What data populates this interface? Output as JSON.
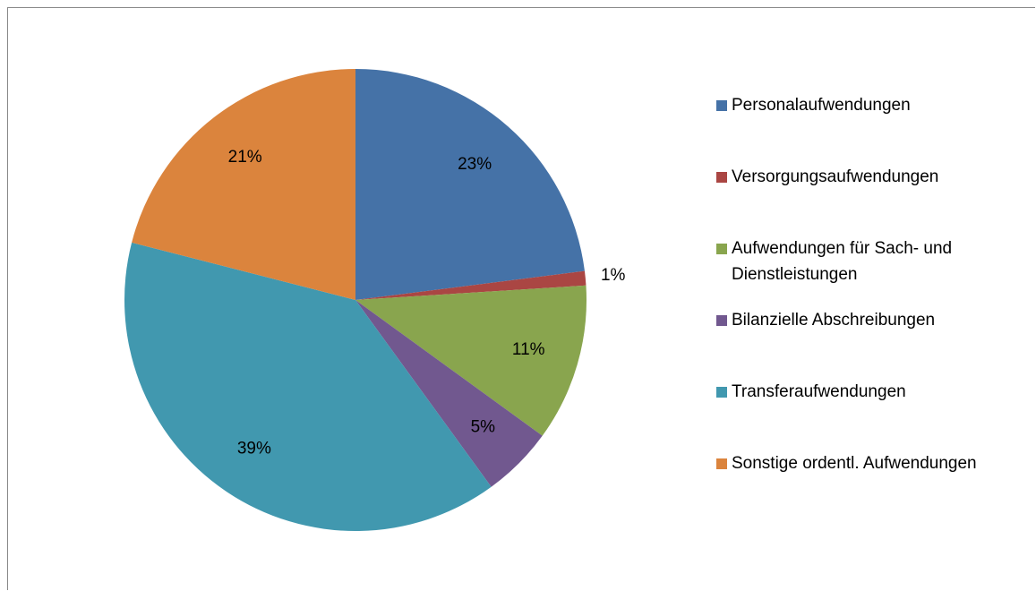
{
  "chart_data": {
    "type": "pie",
    "categories": [
      "Personalaufwendungen",
      "Versorgungsaufwendungen",
      "Aufwendungen für Sach- und Dienstleistungen",
      "Bilanzielle Abschreibungen",
      "Transferaufwendungen",
      "Sonstige ordentl. Aufwendungen"
    ],
    "values": [
      23,
      1,
      11,
      5,
      39,
      21
    ],
    "value_labels": [
      "23%",
      "1%",
      "11%",
      "5%",
      "39%",
      "21%"
    ],
    "colors": [
      "#4572a7",
      "#aa4643",
      "#89a54e",
      "#71588f",
      "#4198af",
      "#db843d"
    ],
    "legend": "right"
  }
}
